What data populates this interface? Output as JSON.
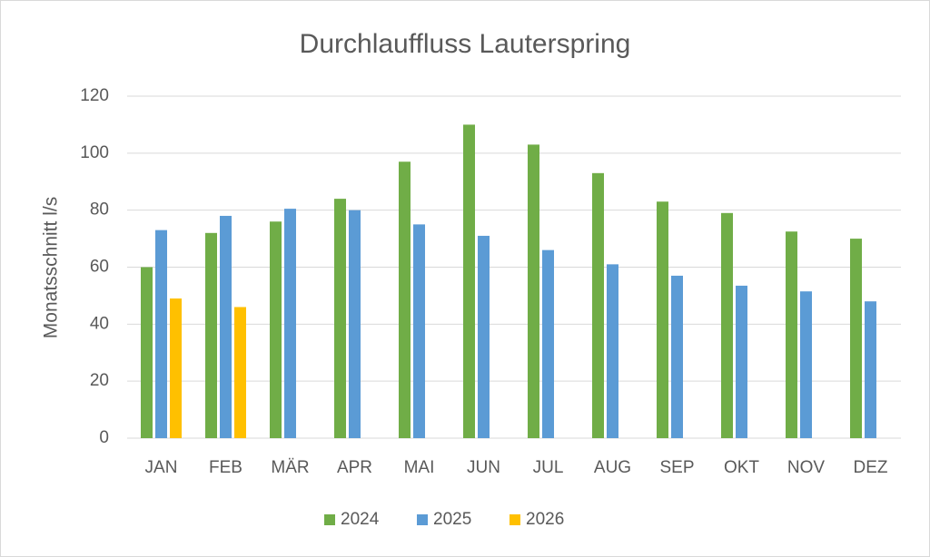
{
  "chart_data": {
    "type": "bar",
    "title": "Durchlauffluss Lauterspring",
    "y_label": "Monatsschnitt l/s",
    "categories": [
      "JAN",
      "FEB",
      "MÄR",
      "APR",
      "MAI",
      "JUN",
      "JUL",
      "AUG",
      "SEP",
      "OKT",
      "NOV",
      "DEZ"
    ],
    "series": [
      {
        "name": "2024",
        "color": "#70ad47",
        "values": [
          60,
          72,
          76,
          84,
          97,
          110,
          103,
          93,
          83,
          79,
          72.5,
          70
        ]
      },
      {
        "name": "2025",
        "color": "#5b9bd5",
        "values": [
          73,
          78,
          80.5,
          80,
          75,
          71,
          66,
          61,
          57,
          53.5,
          51.5,
          48
        ]
      },
      {
        "name": "2026",
        "color": "#ffc000",
        "values": [
          49,
          46,
          null,
          null,
          null,
          null,
          null,
          null,
          null,
          null,
          null,
          null
        ]
      }
    ],
    "ylim": [
      0,
      120
    ],
    "yticks": [
      0,
      20,
      40,
      60,
      80,
      100,
      120
    ],
    "grid": true,
    "legend": "bottom"
  }
}
